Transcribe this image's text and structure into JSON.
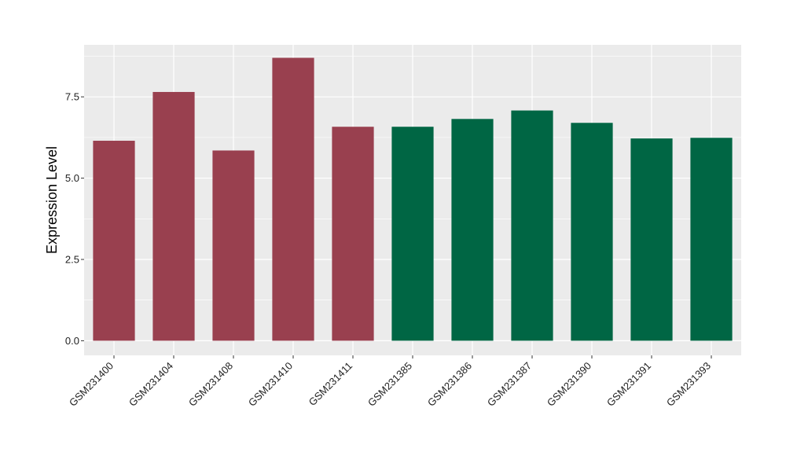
{
  "chart_data": {
    "type": "bar",
    "title": "",
    "xlabel": "",
    "ylabel": "Expression Level",
    "categories": [
      "GSM231400",
      "GSM231404",
      "GSM231408",
      "GSM231410",
      "GSM231411",
      "GSM231385",
      "GSM231386",
      "GSM231387",
      "GSM231390",
      "GSM231391",
      "GSM231393"
    ],
    "values": [
      6.15,
      7.65,
      5.85,
      8.7,
      6.58,
      6.58,
      6.82,
      7.08,
      6.7,
      6.22,
      6.24
    ],
    "bar_colors": [
      "#99404f",
      "#99404f",
      "#99404f",
      "#99404f",
      "#99404f",
      "#006644",
      "#006644",
      "#006644",
      "#006644",
      "#006644",
      "#006644"
    ],
    "ylim": [
      -0.45,
      9.1
    ],
    "yticks": [
      0,
      2.5,
      5,
      7.5
    ],
    "ytick_labels": [
      "0.0",
      "2.5",
      "5.0",
      "7.5"
    ],
    "grid": true,
    "legend": "none",
    "panel_background": "#ebebeb",
    "grid_color": "#ffffff"
  }
}
